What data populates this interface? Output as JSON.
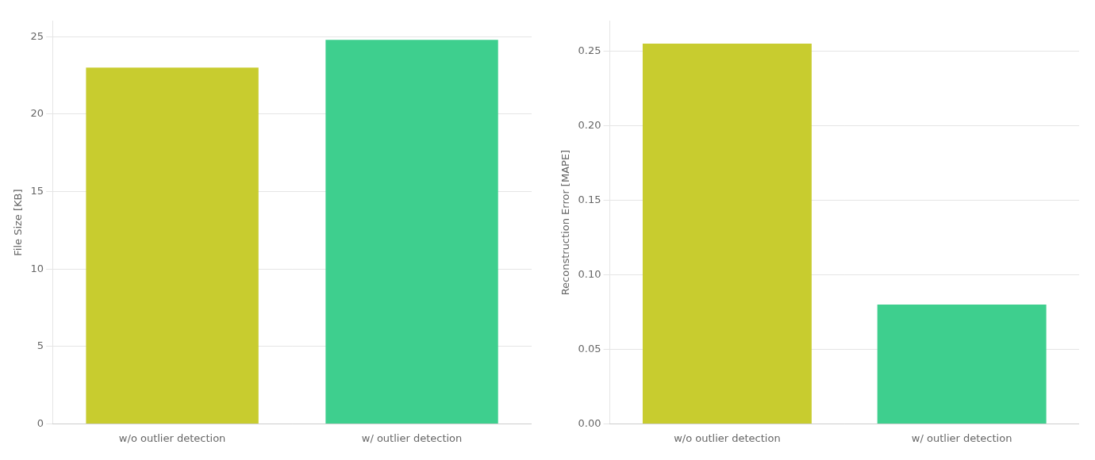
{
  "chart_data": [
    {
      "type": "bar",
      "categories": [
        "w/o outlier detection",
        "w/ outlier detection"
      ],
      "values": [
        23.0,
        24.8
      ],
      "colors": [
        "#c8cc2f",
        "#3ecf8e"
      ],
      "ylabel": "File Size [KB]",
      "ylim": [
        0,
        26
      ],
      "yticks": [
        0,
        5,
        10,
        15,
        20,
        25
      ],
      "grid": true
    },
    {
      "type": "bar",
      "categories": [
        "w/o outlier detection",
        "w/ outlier detection"
      ],
      "values": [
        0.255,
        0.08
      ],
      "colors": [
        "#c8cc2f",
        "#3ecf8e"
      ],
      "ylabel": "Reconstruction Error [MAPE]",
      "ylim": [
        0,
        0.27
      ],
      "yticks": [
        {
          "value": 0,
          "label": "0.00"
        },
        0.05,
        {
          "value": 0.1,
          "label": "0.10"
        },
        0.15,
        {
          "value": 0.2,
          "label": "0.20"
        },
        0.25
      ],
      "grid": true
    }
  ]
}
